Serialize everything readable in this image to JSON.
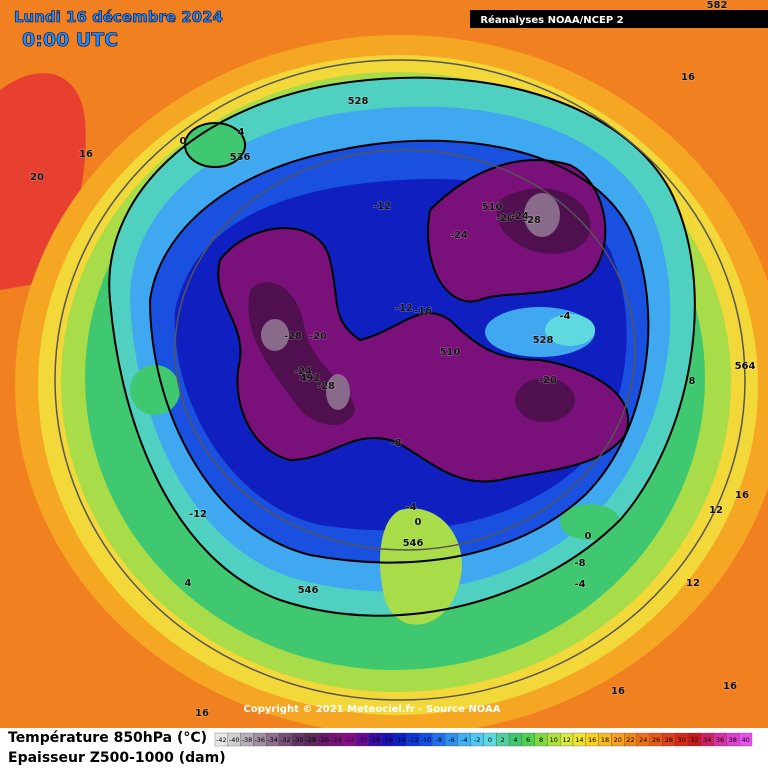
{
  "header": {
    "date": "Lundi 16 décembre 2024",
    "time": "0:00 UTC",
    "source": "Réanalyses NOAA/NCEP 2"
  },
  "footer": {
    "copyright": "Copyright © 2021 Meteociel.fr - Source NOAA",
    "line1": "Température 850hPa (°C)",
    "line2": "Epaisseur Z500-1000 (dam)"
  },
  "map": {
    "labels": [
      582,
      16,
      528,
      4,
      0,
      536,
      16,
      20,
      -12,
      510,
      -20,
      -24,
      -28,
      -24,
      -12,
      -16,
      -4,
      528,
      -28,
      -20,
      510,
      -24,
      492,
      -28,
      -20,
      8,
      564,
      -8,
      -12,
      -4,
      0,
      546,
      0,
      -8,
      -4,
      16,
      12,
      12,
      4,
      546,
      16,
      16,
      16
    ]
  },
  "legend": {
    "values": [
      -42,
      -40,
      -38,
      -36,
      -34,
      -32,
      -30,
      -28,
      -26,
      -24,
      -22,
      -20,
      -18,
      -16,
      -14,
      -12,
      -10,
      -8,
      -6,
      -4,
      -2,
      0,
      2,
      4,
      6,
      8,
      10,
      12,
      14,
      16,
      18,
      20,
      22,
      24,
      26,
      28,
      30,
      32,
      34,
      36,
      38,
      40
    ],
    "colors": [
      "#e8e8e8",
      "#d0d0d0",
      "#b8b0b8",
      "#a090a0",
      "#8c708c",
      "#785078",
      "#643864",
      "#5a2a5a",
      "#6a1a6a",
      "#7a107a",
      "#8a0a8a",
      "#6a0a9a",
      "#3a0aa8",
      "#1a10b8",
      "#0a20c8",
      "#0a38d8",
      "#1050e8",
      "#2070f0",
      "#3090f0",
      "#40b0f0",
      "#50c8f0",
      "#60d8e0",
      "#50d0a0",
      "#40c870",
      "#50d050",
      "#80d840",
      "#b0e040",
      "#d8e840",
      "#f0e030",
      "#f8d020",
      "#f8b820",
      "#f8a020",
      "#f08818",
      "#f07018",
      "#e85818",
      "#e04018",
      "#d82818",
      "#c81818",
      "#d02060",
      "#d830a0",
      "#e040d0",
      "#e850f0"
    ]
  }
}
